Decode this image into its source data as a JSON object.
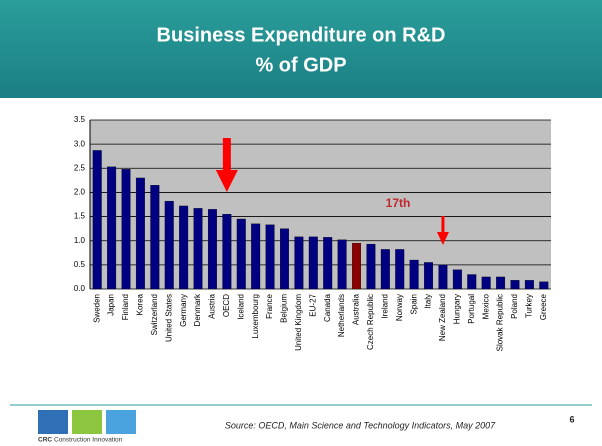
{
  "chart_data": {
    "type": "bar",
    "title": "Business Expenditure on R&D",
    "subtitle": "% of GDP",
    "categories": [
      "Sweden",
      "Japan",
      "Finland",
      "Korea",
      "Switzerland",
      "United States",
      "Germany",
      "Denmark",
      "Austria",
      "OECD",
      "Iceland",
      "Luxembourg",
      "France",
      "Belgium",
      "United Kingdom",
      "EU-27",
      "Canada",
      "Netherlands",
      "Australia",
      "Czech Republic",
      "Ireland",
      "Norway",
      "Spain",
      "Italy",
      "New Zealand",
      "Hungary",
      "Portugal",
      "Mexico",
      "Slovak Republic",
      "Poland",
      "Turkey",
      "Greece"
    ],
    "values": [
      2.87,
      2.53,
      2.48,
      2.3,
      2.15,
      1.82,
      1.72,
      1.67,
      1.65,
      1.55,
      1.45,
      1.35,
      1.33,
      1.25,
      1.08,
      1.08,
      1.07,
      1.02,
      0.95,
      0.93,
      0.82,
      0.82,
      0.6,
      0.55,
      0.5,
      0.4,
      0.3,
      0.25,
      0.25,
      0.18,
      0.18,
      0.15
    ],
    "colors": [
      "#000080",
      "#000080",
      "#000080",
      "#000080",
      "#000080",
      "#000080",
      "#000080",
      "#000080",
      "#000080",
      "#000080",
      "#000080",
      "#000080",
      "#000080",
      "#000080",
      "#000080",
      "#000080",
      "#000080",
      "#000080",
      "#8b0000",
      "#000080",
      "#000080",
      "#000080",
      "#000080",
      "#000080",
      "#000080",
      "#000080",
      "#000080",
      "#000080",
      "#000080",
      "#000080",
      "#000080",
      "#000080"
    ],
    "ylim": [
      0,
      3.5
    ],
    "yticks": [
      {
        "value": 0,
        "label": "0.0"
      },
      0.5,
      {
        "value": 1,
        "label": "1.0"
      },
      1.5,
      {
        "value": 2,
        "label": "2.0"
      },
      2.5,
      {
        "value": 3,
        "label": "3.0"
      },
      3.5
    ],
    "grid": true,
    "annotations": [
      "17th"
    ]
  },
  "footer": {
    "source": "Source:  OECD, Main Science and Technology Indicators, May 2007",
    "page": "6",
    "logo_bold": "CRC",
    "logo_text": "Construction Innovation"
  }
}
